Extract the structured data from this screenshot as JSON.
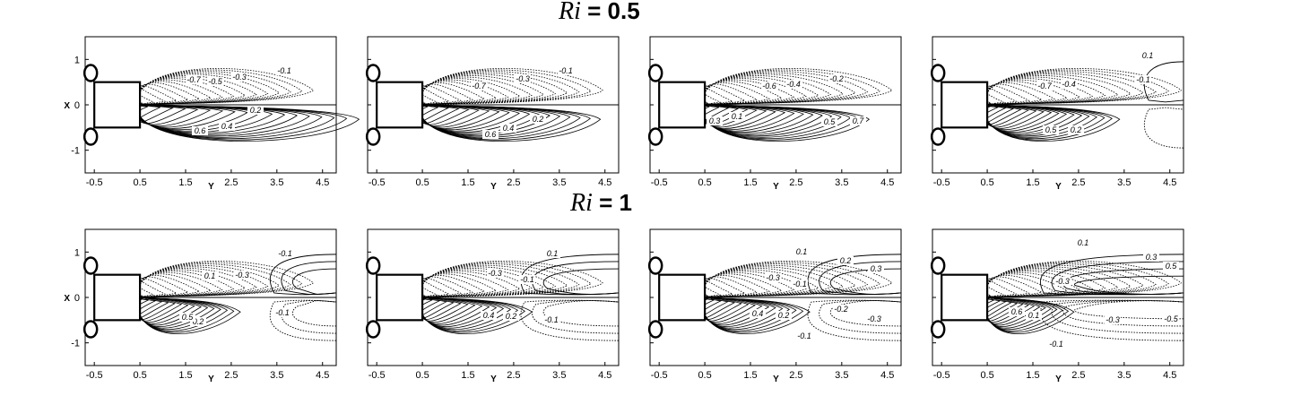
{
  "rows": [
    {
      "title_symbol": "Ri",
      "title_value": "= 0.5",
      "panels": [
        {
          "labels": [
            "-0.1",
            "-0.3",
            "-0.5",
            "-0.7",
            "0.2",
            "0.4",
            "0.6"
          ]
        },
        {
          "labels": [
            "-0.1",
            "-0.3",
            "-0.7",
            "0.2",
            "0.4",
            "0.6"
          ]
        },
        {
          "labels": [
            "-0.2",
            "-0.4",
            "-0.6",
            "0.1",
            "0.3",
            "0.5",
            "0.7"
          ]
        },
        {
          "labels": [
            "0.1",
            "-0.1",
            "-0.4",
            "-0.7",
            "0.2",
            "0.5"
          ]
        }
      ]
    },
    {
      "title_symbol": "Ri",
      "title_value": "= 1",
      "panels": [
        {
          "labels": [
            "-0.1",
            "-0.3",
            "0.1",
            "-0.1",
            "0.2",
            "0.5"
          ]
        },
        {
          "labels": [
            "0.1",
            "-0.1",
            "-0.3",
            "-0.1",
            "0.2",
            "0.4"
          ]
        },
        {
          "labels": [
            "0.1",
            "-0.1",
            "-0.3",
            "0.2",
            "0.3",
            "-0.2",
            "-0.3",
            "-0.1",
            "0.2",
            "0.4"
          ]
        },
        {
          "labels": [
            "0.1",
            "0.3",
            "0.5",
            "-0.3",
            "-0.1",
            "-0.3",
            "-0.5",
            "0.1",
            "0.6"
          ]
        }
      ]
    }
  ],
  "axes": {
    "xlabel": "Y",
    "ylabel": "X",
    "x_ticks": [
      "-0.5",
      "0.5",
      "1.5",
      "2.5",
      "3.5",
      "4.5"
    ],
    "y_ticks": [
      "1",
      "0",
      "-1"
    ],
    "x_range": [
      -0.7,
      4.8
    ],
    "y_range": [
      -1.5,
      1.5
    ]
  },
  "colors": {
    "line": "#000000",
    "background": "#ffffff"
  }
}
